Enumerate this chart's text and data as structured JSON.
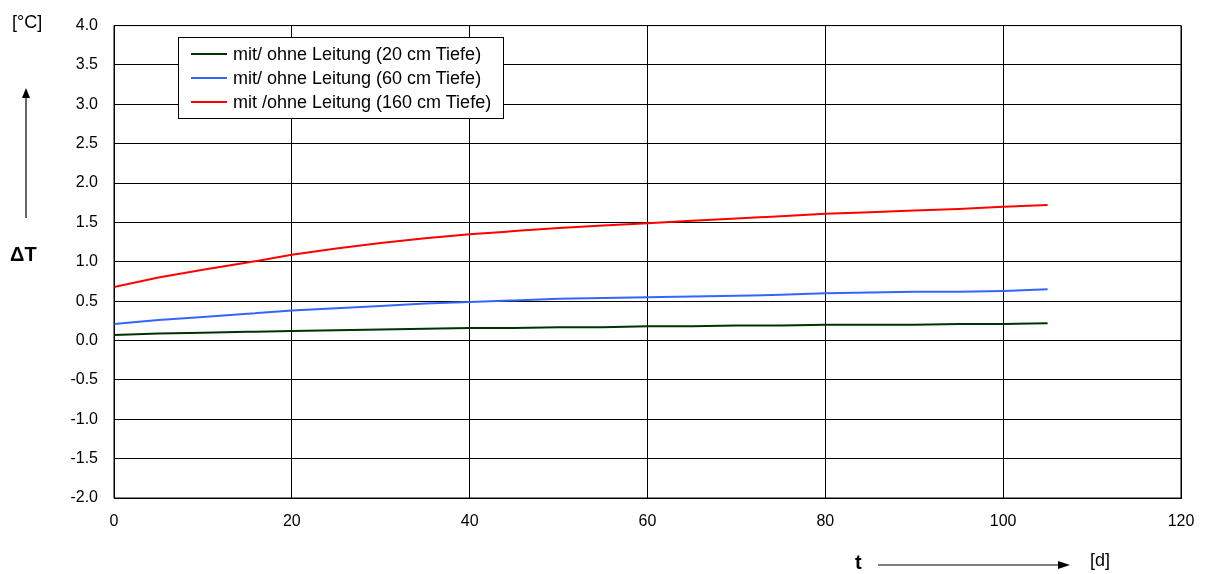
{
  "chart_data": {
    "type": "line",
    "xlabel": "t",
    "ylabel": "ΔT",
    "annotations": [
      "[°C]",
      "[d]"
    ],
    "x": [
      0,
      5,
      10,
      15,
      20,
      25,
      30,
      35,
      40,
      45,
      50,
      55,
      60,
      65,
      70,
      75,
      80,
      85,
      90,
      95,
      100,
      105
    ],
    "series": [
      {
        "name": "mit/ ohne Leitung (20 cm Tiefe)",
        "color": "#003300",
        "values": [
          0.07,
          0.09,
          0.1,
          0.11,
          0.12,
          0.13,
          0.14,
          0.15,
          0.16,
          0.16,
          0.17,
          0.17,
          0.18,
          0.18,
          0.19,
          0.19,
          0.2,
          0.2,
          0.2,
          0.21,
          0.21,
          0.22
        ]
      },
      {
        "name": "mit/ ohne Leitung (60 cm Tiefe)",
        "color": "#3366ff",
        "values": [
          0.21,
          0.26,
          0.3,
          0.34,
          0.38,
          0.41,
          0.44,
          0.47,
          0.49,
          0.51,
          0.53,
          0.54,
          0.55,
          0.56,
          0.57,
          0.58,
          0.6,
          0.61,
          0.62,
          0.62,
          0.63,
          0.65
        ]
      },
      {
        "name": "mit /ohne Leitung (160 cm Tiefe)",
        "color": "#ff0000",
        "values": [
          0.68,
          0.8,
          0.9,
          0.99,
          1.09,
          1.17,
          1.24,
          1.3,
          1.35,
          1.39,
          1.43,
          1.46,
          1.49,
          1.52,
          1.55,
          1.58,
          1.61,
          1.63,
          1.65,
          1.67,
          1.7,
          1.72
        ]
      }
    ],
    "xlim": [
      0,
      120
    ],
    "xticks": [
      0,
      20,
      40,
      60,
      80,
      100,
      120
    ],
    "ylim": [
      -2,
      4
    ],
    "yticks": [
      {
        "value": -2,
        "label": "-2.0"
      },
      {
        "value": -1.5,
        "label": "-1.5"
      },
      {
        "value": -1,
        "label": "-1.0"
      },
      {
        "value": -0.5,
        "label": "-0.5"
      },
      {
        "value": 0,
        "label": "0.0"
      },
      {
        "value": 0.5,
        "label": "0.5"
      },
      {
        "value": 1,
        "label": "1.0"
      },
      {
        "value": 1.5,
        "label": "1.5"
      },
      {
        "value": 2,
        "label": "2.0"
      },
      {
        "value": 2.5,
        "label": "2.5"
      },
      {
        "value": 3,
        "label": "3.0"
      },
      {
        "value": 3.5,
        "label": "3.5"
      },
      {
        "value": 4,
        "label": "4.0"
      }
    ],
    "grid": true,
    "legend": "top left",
    "marker": "none",
    "line_style": "solid"
  }
}
